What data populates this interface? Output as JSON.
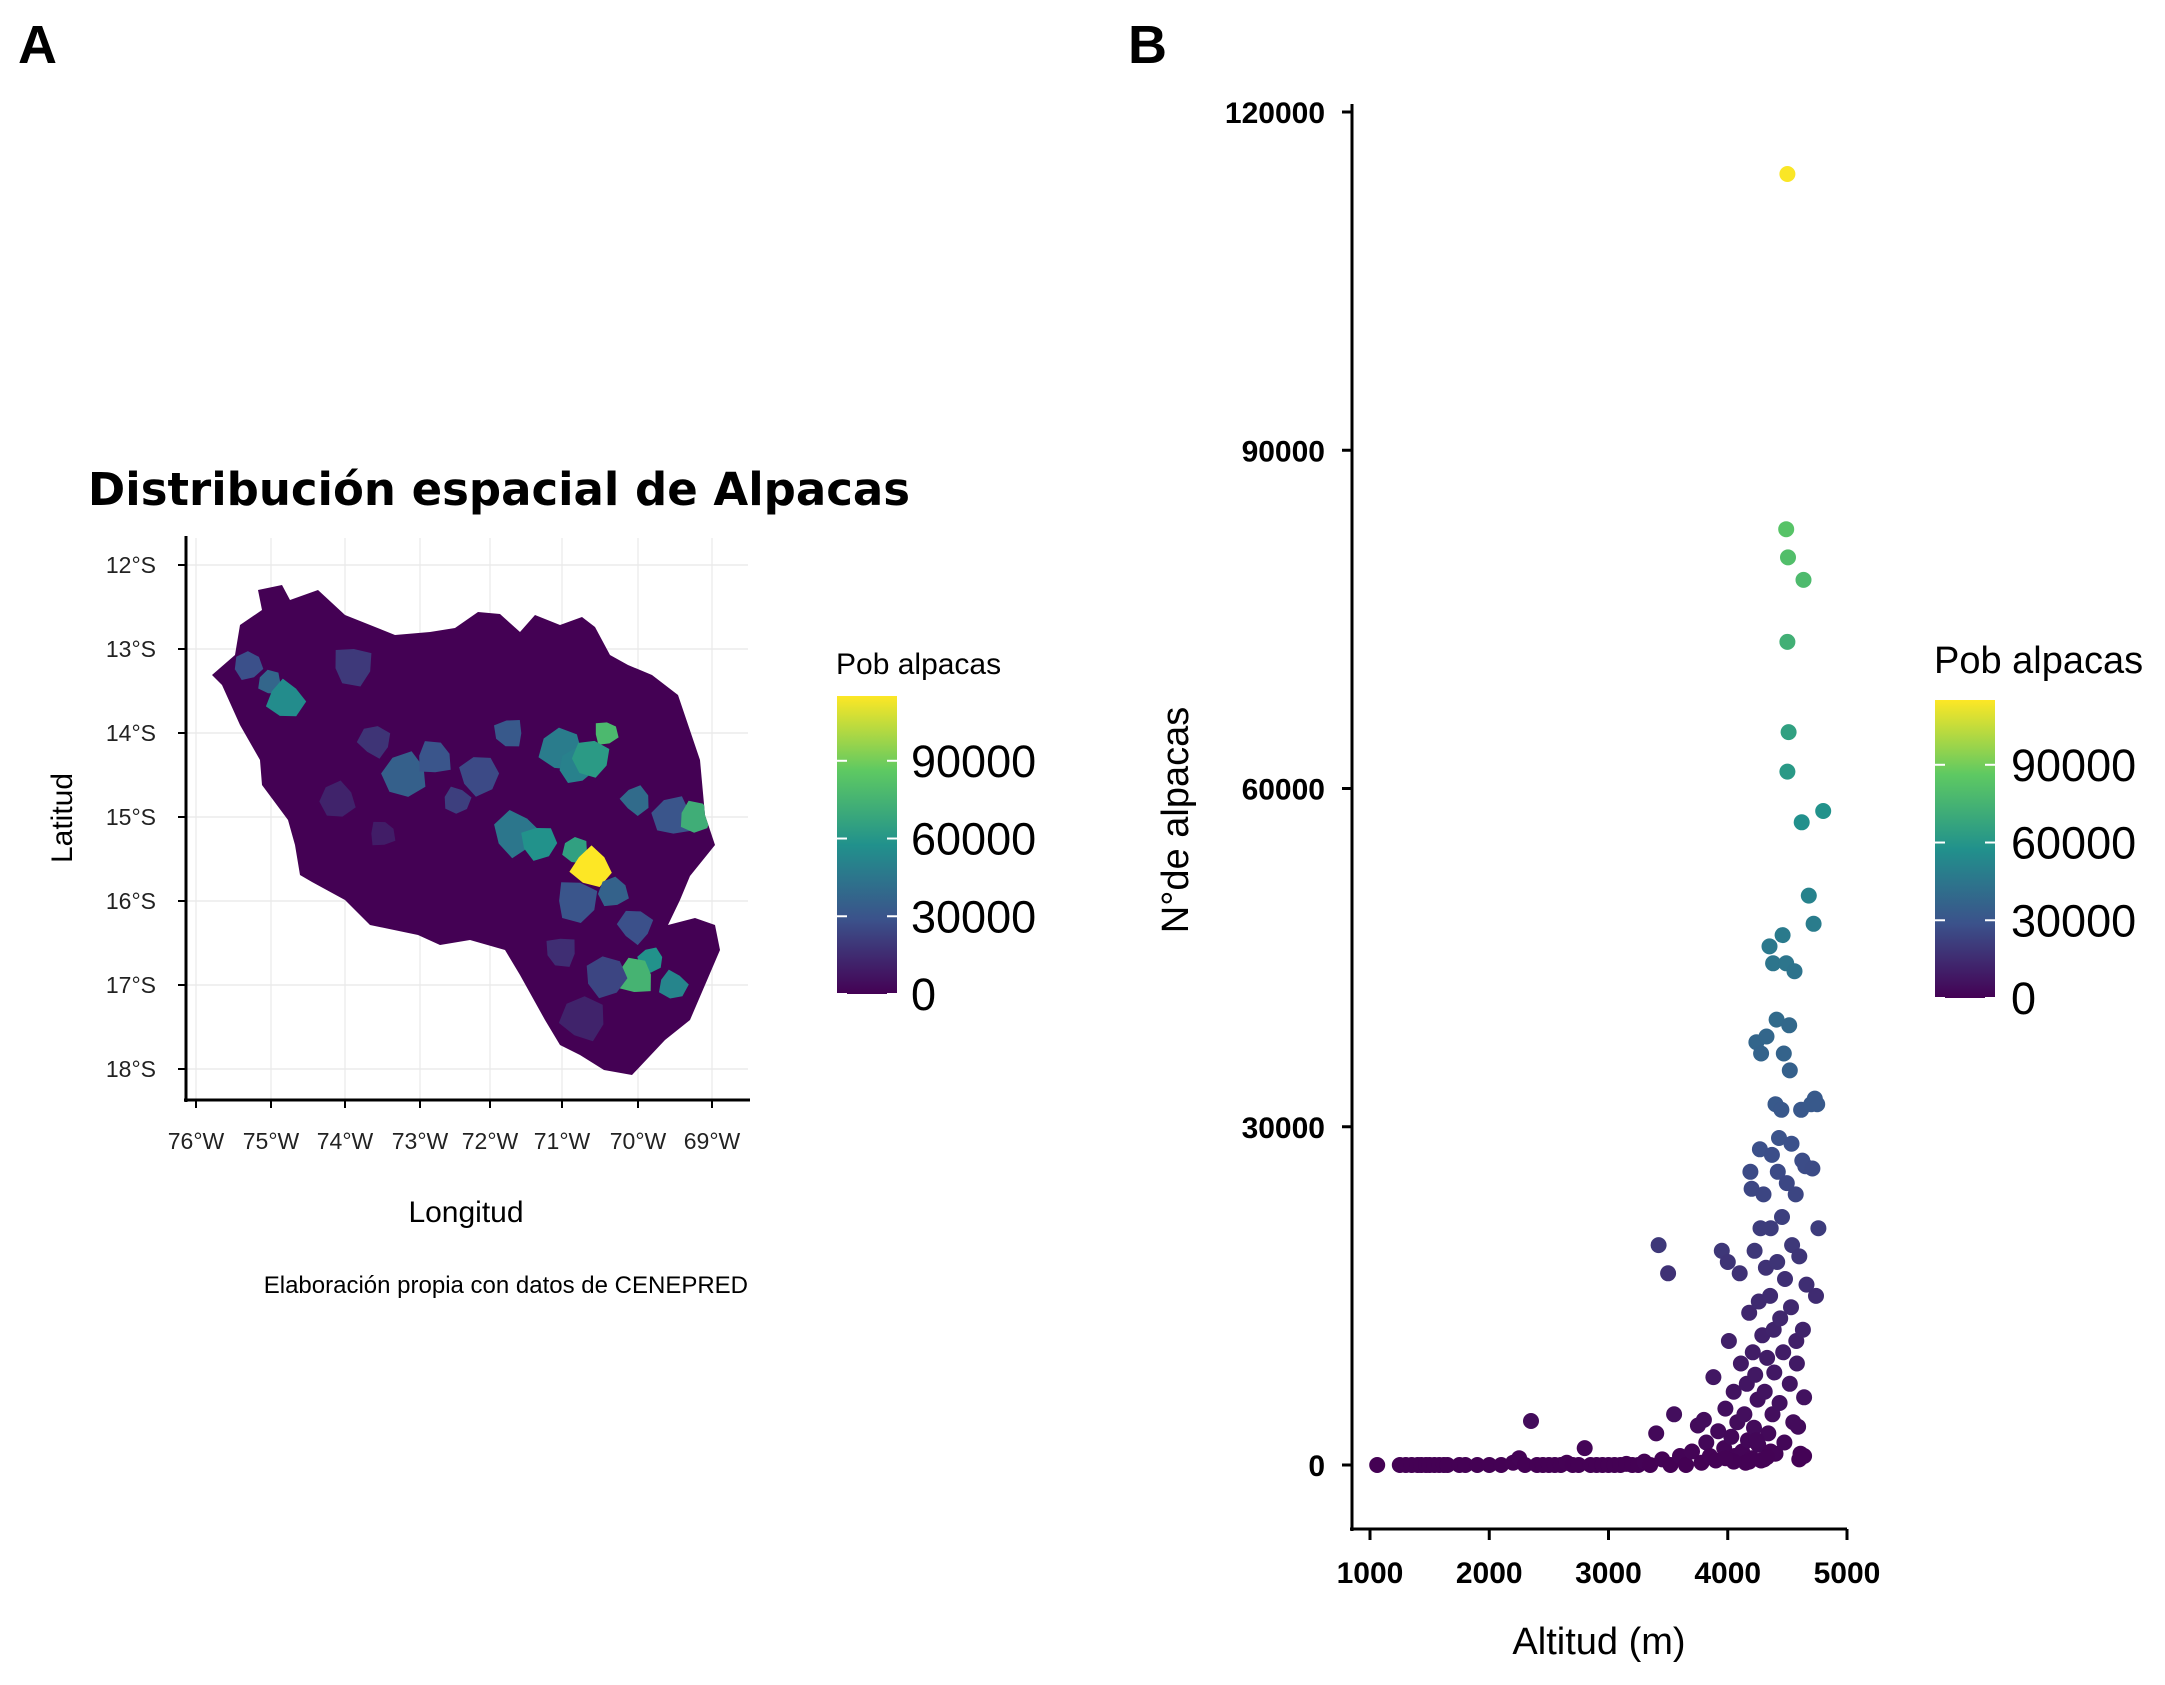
{
  "figure": {
    "panel_a_label": "A",
    "panel_b_label": "B"
  },
  "chart_data": [
    {
      "type": "heatmap",
      "subtype": "choropleth map",
      "title": "Distribución espacial de Alpacas",
      "xlabel": "Longitud",
      "ylabel": "Latitud",
      "caption": "Elaboración propia con datos de CENEPRED",
      "x_ticks": [
        "76°W",
        "75°W",
        "74°W",
        "73°W",
        "72°W",
        "71°W",
        "70°W",
        "69°W"
      ],
      "y_ticks": [
        "12°S",
        "13°S",
        "14°S",
        "15°S",
        "16°S",
        "17°S",
        "18°S"
      ],
      "xlim": [
        -76,
        -68.5
      ],
      "ylim": [
        -18.2,
        -11.9
      ],
      "grid": true,
      "legend": {
        "title": "Pob alpacas",
        "position": "right",
        "labels": [
          "90000",
          "60000",
          "30000",
          "0"
        ],
        "ticks": [
          90000,
          60000,
          30000,
          0
        ],
        "range": [
          0,
          115000
        ]
      },
      "colormap": [
        "#440154",
        "#3b528b",
        "#21918c",
        "#5ec962",
        "#fde725"
      ],
      "districts": [
        {
          "lon": -75.0,
          "lat": -13.4,
          "value": 38000
        },
        {
          "lon": -74.8,
          "lat": -13.6,
          "value": 55000
        },
        {
          "lon": -75.3,
          "lat": -13.2,
          "value": 28000
        },
        {
          "lon": -73.9,
          "lat": -13.2,
          "value": 20000
        },
        {
          "lon": -73.6,
          "lat": -14.1,
          "value": 18000
        },
        {
          "lon": -73.2,
          "lat": -14.5,
          "value": 35000
        },
        {
          "lon": -72.8,
          "lat": -14.3,
          "value": 30000
        },
        {
          "lon": -72.5,
          "lat": -14.8,
          "value": 22000
        },
        {
          "lon": -72.2,
          "lat": -14.5,
          "value": 26000
        },
        {
          "lon": -71.8,
          "lat": -14.0,
          "value": 32000
        },
        {
          "lon": -71.1,
          "lat": -14.2,
          "value": 48000
        },
        {
          "lon": -70.9,
          "lat": -14.4,
          "value": 50000
        },
        {
          "lon": -70.5,
          "lat": -14.0,
          "value": 78000
        },
        {
          "lon": -70.7,
          "lat": -14.3,
          "value": 62000
        },
        {
          "lon": -70.1,
          "lat": -14.8,
          "value": 40000
        },
        {
          "lon": -69.6,
          "lat": -15.0,
          "value": 30000
        },
        {
          "lon": -69.3,
          "lat": -15.0,
          "value": 72000
        },
        {
          "lon": -71.7,
          "lat": -15.2,
          "value": 45000
        },
        {
          "lon": -71.4,
          "lat": -15.3,
          "value": 58000
        },
        {
          "lon": -70.9,
          "lat": -15.4,
          "value": 65000
        },
        {
          "lon": -70.7,
          "lat": -15.6,
          "value": 115000
        },
        {
          "lon": -70.4,
          "lat": -15.9,
          "value": 36000
        },
        {
          "lon": -70.9,
          "lat": -16.0,
          "value": 30000
        },
        {
          "lon": -70.1,
          "lat": -16.3,
          "value": 28000
        },
        {
          "lon": -69.9,
          "lat": -16.7,
          "value": 58000
        },
        {
          "lon": -70.1,
          "lat": -16.9,
          "value": 75000
        },
        {
          "lon": -69.6,
          "lat": -17.0,
          "value": 52000
        },
        {
          "lon": -70.5,
          "lat": -16.9,
          "value": 24000
        },
        {
          "lon": -71.1,
          "lat": -16.6,
          "value": 16000
        },
        {
          "lon": -70.8,
          "lat": -17.4,
          "value": 12000
        },
        {
          "lon": -74.1,
          "lat": -14.8,
          "value": 12000
        },
        {
          "lon": -73.5,
          "lat": -15.2,
          "value": 10000
        }
      ]
    },
    {
      "type": "scatter",
      "xlabel": "Altitud (m)",
      "ylabel": "N°de alpacas",
      "xlim": [
        850,
        5000
      ],
      "ylim": [
        -5500,
        121000
      ],
      "x_ticks": [
        1000,
        2000,
        3000,
        4000,
        5000
      ],
      "y_ticks": [
        0,
        30000,
        60000,
        90000,
        120000
      ],
      "grid": false,
      "legend": {
        "title": "Pob alpacas",
        "position": "right",
        "labels": [
          "90000",
          "60000",
          "30000",
          "0"
        ],
        "ticks": [
          90000,
          60000,
          30000,
          0
        ],
        "range": [
          0,
          115000
        ]
      },
      "colormap": [
        "#440154",
        "#3b528b",
        "#21918c",
        "#5ec962",
        "#fde725"
      ],
      "points": [
        [
          1060,
          0
        ],
        [
          1250,
          0
        ],
        [
          1300,
          0
        ],
        [
          1350,
          0
        ],
        [
          1400,
          0
        ],
        [
          1430,
          0
        ],
        [
          1470,
          0
        ],
        [
          1500,
          0
        ],
        [
          1540,
          0
        ],
        [
          1580,
          0
        ],
        [
          1620,
          0
        ],
        [
          1650,
          0
        ],
        [
          1750,
          0
        ],
        [
          1800,
          0
        ],
        [
          1900,
          0
        ],
        [
          2000,
          0
        ],
        [
          2100,
          0
        ],
        [
          2200,
          200
        ],
        [
          2250,
          600
        ],
        [
          2300,
          0
        ],
        [
          2350,
          3900
        ],
        [
          2400,
          0
        ],
        [
          2450,
          0
        ],
        [
          2500,
          0
        ],
        [
          2550,
          0
        ],
        [
          2600,
          0
        ],
        [
          2650,
          200
        ],
        [
          2700,
          0
        ],
        [
          2750,
          0
        ],
        [
          2800,
          1500
        ],
        [
          2850,
          0
        ],
        [
          2900,
          0
        ],
        [
          2950,
          0
        ],
        [
          3000,
          0
        ],
        [
          3050,
          0
        ],
        [
          3100,
          0
        ],
        [
          3150,
          100
        ],
        [
          3200,
          0
        ],
        [
          3250,
          0
        ],
        [
          3300,
          300
        ],
        [
          3350,
          0
        ],
        [
          3400,
          2800
        ],
        [
          3420,
          19500
        ],
        [
          3450,
          500
        ],
        [
          3500,
          17000
        ],
        [
          3520,
          0
        ],
        [
          3550,
          4500
        ],
        [
          3600,
          800
        ],
        [
          3650,
          0
        ],
        [
          3700,
          1200
        ],
        [
          3750,
          3500
        ],
        [
          3780,
          200
        ],
        [
          3800,
          4000
        ],
        [
          3820,
          2000
        ],
        [
          3850,
          800
        ],
        [
          3880,
          7800
        ],
        [
          3900,
          400
        ],
        [
          3920,
          3000
        ],
        [
          3950,
          19000
        ],
        [
          3970,
          1500
        ],
        [
          3980,
          5000
        ],
        [
          4000,
          18000
        ],
        [
          4010,
          11000
        ],
        [
          4030,
          2500
        ],
        [
          4050,
          6500
        ],
        [
          4060,
          800
        ],
        [
          4080,
          3800
        ],
        [
          4100,
          17000
        ],
        [
          4110,
          9000
        ],
        [
          4120,
          1200
        ],
        [
          4140,
          4500
        ],
        [
          4150,
          200
        ],
        [
          4160,
          7200
        ],
        [
          4170,
          2200
        ],
        [
          4180,
          13500
        ],
        [
          4190,
          26000
        ],
        [
          4200,
          24500
        ],
        [
          4200,
          600
        ],
        [
          4210,
          10000
        ],
        [
          4220,
          3300
        ],
        [
          4225,
          19000
        ],
        [
          4230,
          8000
        ],
        [
          4240,
          37500
        ],
        [
          4250,
          5800
        ],
        [
          4255,
          1800
        ],
        [
          4260,
          14500
        ],
        [
          4270,
          28000
        ],
        [
          4275,
          21000
        ],
        [
          4280,
          36500
        ],
        [
          4290,
          11500
        ],
        [
          4300,
          24000
        ],
        [
          4305,
          500
        ],
        [
          4310,
          6500
        ],
        [
          4320,
          17500
        ],
        [
          4325,
          38000
        ],
        [
          4330,
          9500
        ],
        [
          4340,
          2800
        ],
        [
          4350,
          46000
        ],
        [
          4355,
          15000
        ],
        [
          4360,
          21000
        ],
        [
          4370,
          27500
        ],
        [
          4375,
          4500
        ],
        [
          4380,
          44500
        ],
        [
          4385,
          12000
        ],
        [
          4390,
          8200
        ],
        [
          4400,
          32000
        ],
        [
          4400,
          1000
        ],
        [
          4410,
          39500
        ],
        [
          4415,
          18000
        ],
        [
          4420,
          26000
        ],
        [
          4430,
          29000
        ],
        [
          4435,
          5500
        ],
        [
          4440,
          13000
        ],
        [
          4450,
          31500
        ],
        [
          4455,
          22000
        ],
        [
          4460,
          47000
        ],
        [
          4465,
          10000
        ],
        [
          4470,
          36500
        ],
        [
          4475,
          2000
        ],
        [
          4480,
          16500
        ],
        [
          4490,
          44500
        ],
        [
          4490,
          83000
        ],
        [
          4495,
          25000
        ],
        [
          4500,
          73000
        ],
        [
          4500,
          114500
        ],
        [
          4500,
          61500
        ],
        [
          4505,
          80500
        ],
        [
          4510,
          65000
        ],
        [
          4515,
          39000
        ],
        [
          4520,
          35000
        ],
        [
          4520,
          7200
        ],
        [
          4530,
          14000
        ],
        [
          4535,
          28500
        ],
        [
          4540,
          19500
        ],
        [
          4550,
          3800
        ],
        [
          4560,
          43800
        ],
        [
          4570,
          24000
        ],
        [
          4575,
          11000
        ],
        [
          4580,
          9000
        ],
        [
          4590,
          3400
        ],
        [
          4600,
          18500
        ],
        [
          4610,
          1000
        ],
        [
          4615,
          31500
        ],
        [
          4620,
          57000
        ],
        [
          4625,
          27000
        ],
        [
          4630,
          12000
        ],
        [
          4635,
          78500
        ],
        [
          4640,
          6000
        ],
        [
          4650,
          26500
        ],
        [
          4660,
          16000
        ],
        [
          4680,
          50500
        ],
        [
          4700,
          32000
        ],
        [
          4710,
          26300
        ],
        [
          4720,
          48000
        ],
        [
          4730,
          32500
        ],
        [
          4740,
          15000
        ],
        [
          4750,
          32000
        ],
        [
          4760,
          21000
        ],
        [
          4800,
          58000
        ],
        [
          4600,
          500
        ],
        [
          4640,
          800
        ],
        [
          4280,
          400
        ],
        [
          4180,
          300
        ],
        [
          4360,
          1200
        ],
        [
          4050,
          300
        ],
        [
          3980,
          600
        ],
        [
          4240,
          2200
        ],
        [
          4330,
          700
        ]
      ]
    }
  ]
}
